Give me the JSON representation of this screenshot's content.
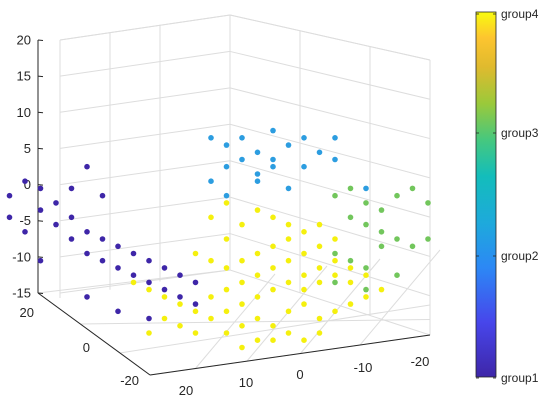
{
  "chart_data": {
    "type": "scatter",
    "title": "",
    "xlabel": "",
    "ylabel": "",
    "zlabel": "",
    "view": "3d",
    "grid": true,
    "axes": {
      "z_ticks": [
        "20",
        "15",
        "10",
        "5",
        "0",
        "-5",
        "-10",
        "-15"
      ],
      "z_tick_values": [
        20,
        15,
        10,
        5,
        0,
        -5,
        -10,
        -15
      ],
      "depth_ticks": [
        "20",
        "0",
        "-20"
      ],
      "depth_tick_values": [
        20,
        0,
        -20
      ],
      "front_ticks": [
        "20",
        "10",
        "0",
        "-10",
        "-20"
      ],
      "front_tick_values": [
        20,
        10,
        0,
        -10,
        -20
      ],
      "zlim": [
        -15,
        20
      ]
    },
    "colorbar": {
      "labels": [
        "group4",
        "group3",
        "group2",
        "group1"
      ],
      "colormap": "parula"
    },
    "series": [
      {
        "name": "group1",
        "color": "#3e26a8",
        "points": [
          [
            -14,
            8
          ],
          [
            -13,
            7
          ],
          [
            -12,
            5
          ],
          [
            -11,
            4
          ],
          [
            -10,
            6
          ],
          [
            -9,
            5
          ],
          [
            -9,
            2
          ],
          [
            -8,
            3
          ],
          [
            -8,
            0
          ],
          [
            -7,
            1
          ],
          [
            -7,
            -2
          ],
          [
            -6,
            -1
          ],
          [
            -6,
            -4
          ],
          [
            -5,
            -2
          ],
          [
            -5,
            -5
          ],
          [
            -4,
            -3
          ],
          [
            -4,
            -6
          ],
          [
            -3,
            -4
          ],
          [
            -3,
            -7
          ],
          [
            -2,
            -5
          ],
          [
            -2,
            -8
          ],
          [
            -1,
            -6
          ],
          [
            -1,
            -9
          ],
          [
            0,
            -7
          ],
          [
            0,
            -10
          ],
          [
            1,
            -8
          ],
          [
            1,
            -11
          ],
          [
            -10,
            -1
          ],
          [
            -12,
            -1
          ],
          [
            -13,
            3
          ],
          [
            -11,
            1
          ],
          [
            -7,
            5
          ],
          [
            -6,
            8
          ],
          [
            -5,
            4
          ],
          [
            -9,
            -5
          ],
          [
            -6,
            -10
          ],
          [
            -4,
            -12
          ],
          [
            -2,
            -13
          ]
        ]
      },
      {
        "name": "group2",
        "color": "#2c9de0",
        "points": [
          [
            2,
            12
          ],
          [
            3,
            11
          ],
          [
            4,
            12
          ],
          [
            5,
            10
          ],
          [
            6,
            9
          ],
          [
            7,
            11
          ],
          [
            8,
            12
          ],
          [
            9,
            10
          ],
          [
            10,
            9
          ],
          [
            4,
            9
          ],
          [
            5,
            7
          ],
          [
            6,
            8
          ],
          [
            7,
            5
          ],
          [
            3,
            8
          ],
          [
            2,
            6
          ],
          [
            8,
            8
          ],
          [
            10,
            12
          ],
          [
            6,
            13
          ],
          [
            3,
            4
          ],
          [
            5,
            6
          ],
          [
            12,
            5
          ]
        ]
      },
      {
        "name": "group3",
        "color": "#72c65c",
        "points": [
          [
            10,
            4
          ],
          [
            11,
            5
          ],
          [
            12,
            3
          ],
          [
            13,
            2
          ],
          [
            14,
            4
          ],
          [
            15,
            5
          ],
          [
            16,
            3
          ],
          [
            11,
            1
          ],
          [
            12,
            0
          ],
          [
            13,
            -1
          ],
          [
            14,
            -2
          ],
          [
            15,
            -3
          ],
          [
            16,
            -2
          ],
          [
            10,
            -4
          ],
          [
            11,
            -5
          ],
          [
            12,
            -6
          ],
          [
            13,
            -3
          ],
          [
            14,
            -7
          ],
          [
            10,
            -8
          ],
          [
            12,
            -9
          ]
        ]
      },
      {
        "name": "group4",
        "color": "#f5f00e",
        "points": [
          [
            -3,
            -8
          ],
          [
            -2,
            -9
          ],
          [
            -1,
            -10
          ],
          [
            0,
            -11
          ],
          [
            1,
            -12
          ],
          [
            2,
            -13
          ],
          [
            3,
            -12
          ],
          [
            4,
            -11
          ],
          [
            5,
            -13
          ],
          [
            6,
            -14
          ],
          [
            7,
            -12
          ],
          [
            8,
            -11
          ],
          [
            9,
            -13
          ],
          [
            -1,
            -13
          ],
          [
            0,
            -14
          ],
          [
            1,
            -15
          ],
          [
            3,
            -15
          ],
          [
            4,
            -14
          ],
          [
            2,
            -10
          ],
          [
            3,
            -9
          ],
          [
            4,
            -8
          ],
          [
            5,
            -7
          ],
          [
            6,
            -6
          ],
          [
            7,
            -5
          ],
          [
            8,
            -4
          ],
          [
            9,
            -3
          ],
          [
            10,
            -2
          ],
          [
            6,
            -9
          ],
          [
            7,
            -8
          ],
          [
            8,
            -7
          ],
          [
            9,
            -6
          ],
          [
            10,
            -5
          ],
          [
            5,
            -10
          ],
          [
            4,
            -5
          ],
          [
            5,
            -4
          ],
          [
            6,
            -3
          ],
          [
            7,
            -2
          ],
          [
            8,
            -1
          ],
          [
            9,
            0
          ],
          [
            3,
            -2
          ],
          [
            4,
            0
          ],
          [
            2,
            1
          ],
          [
            3,
            3
          ],
          [
            5,
            2
          ],
          [
            6,
            1
          ],
          [
            7,
            0
          ],
          [
            1,
            -4
          ],
          [
            2,
            -5
          ],
          [
            3,
            -6
          ],
          [
            8,
            -9
          ],
          [
            9,
            -8
          ],
          [
            10,
            -7
          ],
          [
            11,
            -6
          ],
          [
            11,
            -8
          ],
          [
            12,
            -7
          ],
          [
            12,
            -10
          ],
          [
            13,
            -9
          ],
          [
            6,
            -16
          ],
          [
            7,
            -15
          ],
          [
            8,
            -16
          ],
          [
            4,
            -17
          ],
          [
            5,
            -16
          ],
          [
            9,
            -15
          ],
          [
            10,
            -12
          ],
          [
            11,
            -11
          ],
          [
            -2,
            -15
          ]
        ]
      }
    ]
  }
}
